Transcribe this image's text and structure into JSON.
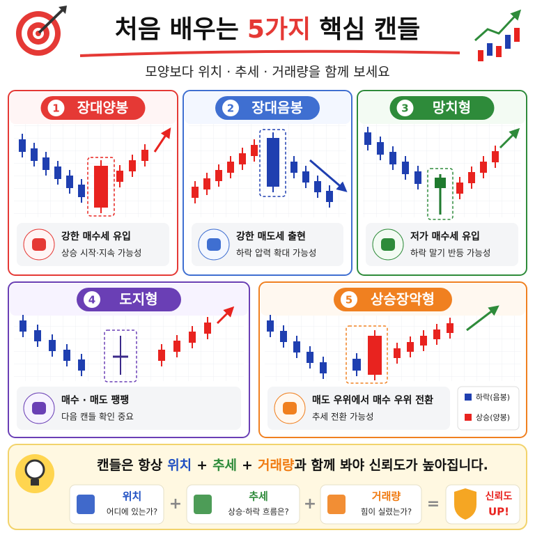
{
  "header": {
    "title_pre": "처음 배우는",
    "title_highlight": "5가지",
    "title_post": "핵심 캔들",
    "subtitle": "모양보다 위치 · 추세 · 거래량을 함께 보세요"
  },
  "cards": [
    {
      "number": "1",
      "name": "장대양봉",
      "desc": "강한 매수세 유입",
      "sub": "상승 시작·지속 가능성"
    },
    {
      "number": "2",
      "name": "장대음봉",
      "desc": "강한 매도세 출현",
      "sub": "하락 압력 확대 가능성"
    },
    {
      "number": "3",
      "name": "망치형",
      "desc": "저가 매수세 유입",
      "sub": "하락 말기 반등 가능성"
    },
    {
      "number": "4",
      "name": "도지형",
      "desc": "매수 · 매도 팽팽",
      "sub": "다음 캔들 확인 중요"
    },
    {
      "number": "5",
      "name": "상승장악형",
      "desc": "매도 우위에서 매수 우위 전환",
      "sub": "추세 전환 가능성"
    }
  ],
  "legend": {
    "down": "하락(음봉)",
    "up": "상승(양봉)"
  },
  "summary": {
    "sentence": [
      "캔들은 항상",
      "위치",
      "+",
      "추세",
      "+",
      "거래량",
      "과 함께 봐야 신뢰도가 높아집니다."
    ],
    "items": [
      {
        "title": "위치",
        "text": "어디에 있는가?"
      },
      {
        "title": "추세",
        "text": "상승·하락 흐름은?"
      },
      {
        "title": "거래량",
        "text": "힘이 실렸는가?"
      }
    ],
    "operators": [
      "+",
      "+",
      "="
    ],
    "result": {
      "title": "신뢰도",
      "text": "UP!"
    }
  }
}
